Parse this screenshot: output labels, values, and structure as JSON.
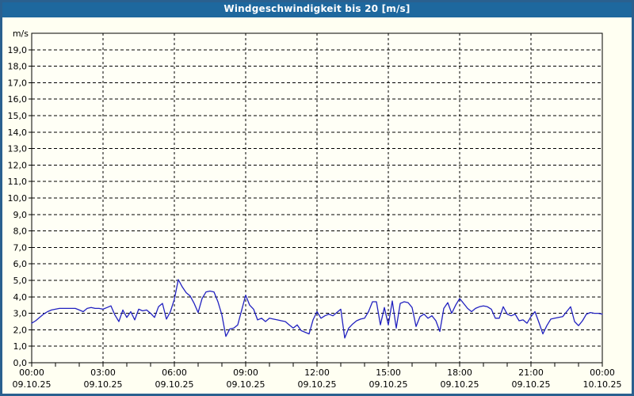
{
  "window": {
    "title": "Windgeschwindigkeit bis 20 [m/s]"
  },
  "colors": {
    "titlebar": "#1e689e",
    "page_border": "#2a608f",
    "background": "#fffff2",
    "plot_background": "#fffff6",
    "grid": "#000000",
    "axis": "#000000",
    "series_line": "#2121c0",
    "title_text": "#ffffff",
    "tick_text": "#000000"
  },
  "chart_data": {
    "type": "line",
    "title": "Windgeschwindigkeit bis 20 [m/s]",
    "ylabel": "m/s",
    "xlabel": "",
    "ylim": [
      0,
      20
    ],
    "y_tick_step": 1.0,
    "y_tick_labels": [
      "0,0",
      "1,0",
      "2,0",
      "3,0",
      "4,0",
      "5,0",
      "6,0",
      "7,0",
      "8,0",
      "9,0",
      "10,0",
      "11,0",
      "12,0",
      "13,0",
      "14,0",
      "15,0",
      "16,0",
      "17,0",
      "18,0",
      "19,0"
    ],
    "grid": "dashed",
    "legend_position": "none",
    "x_total_minutes": 1440,
    "x_minor_tick_minutes": 60,
    "x_major_tick_minutes": 180,
    "x_ticks": [
      {
        "time": "00:00",
        "date": "09.10.25"
      },
      {
        "time": "03:00",
        "date": "09.10.25"
      },
      {
        "time": "06:00",
        "date": "09.10.25"
      },
      {
        "time": "09:00",
        "date": "09.10.25"
      },
      {
        "time": "12:00",
        "date": "09.10.25"
      },
      {
        "time": "15:00",
        "date": "09.10.25"
      },
      {
        "time": "18:00",
        "date": "09.10.25"
      },
      {
        "time": "21:00",
        "date": "09.10.25"
      },
      {
        "time": "00:00",
        "date": "10.10.25"
      }
    ],
    "series": [
      {
        "name": "Windgeschwindigkeit",
        "unit": "m/s",
        "start_time": "09.10.25 00:00",
        "interval_minutes": 10,
        "values": [
          2.4,
          2.55,
          2.75,
          2.95,
          3.1,
          3.2,
          3.25,
          3.3,
          3.3,
          3.3,
          3.3,
          3.3,
          3.2,
          3.1,
          3.3,
          3.35,
          3.3,
          3.3,
          3.25,
          3.35,
          3.45,
          2.9,
          2.5,
          3.2,
          2.75,
          3.1,
          2.6,
          3.25,
          3.15,
          3.2,
          3.0,
          2.75,
          3.4,
          3.6,
          2.65,
          3.1,
          3.85,
          5.05,
          4.6,
          4.25,
          4.05,
          3.6,
          3.05,
          3.9,
          4.3,
          4.35,
          4.3,
          3.7,
          2.9,
          1.6,
          2.05,
          2.1,
          2.3,
          3.2,
          4.1,
          3.5,
          3.25,
          2.6,
          2.7,
          2.5,
          2.7,
          2.65,
          2.6,
          2.55,
          2.5,
          2.3,
          2.1,
          2.3,
          1.95,
          1.85,
          1.75,
          2.6,
          3.1,
          2.7,
          2.85,
          2.95,
          2.85,
          3.05,
          3.25,
          1.5,
          2.1,
          2.35,
          2.55,
          2.65,
          2.7,
          3.1,
          3.7,
          3.7,
          2.3,
          3.35,
          2.3,
          3.75,
          2.1,
          3.6,
          3.7,
          3.65,
          3.35,
          2.2,
          2.8,
          2.95,
          2.7,
          2.85,
          2.55,
          1.9,
          3.3,
          3.65,
          3.0,
          3.5,
          3.9,
          3.6,
          3.3,
          3.1,
          3.3,
          3.4,
          3.45,
          3.4,
          3.25,
          2.7,
          2.7,
          3.4,
          2.95,
          2.85,
          2.95,
          2.55,
          2.6,
          2.4,
          2.8,
          3.1,
          2.45,
          1.75,
          2.25,
          2.65,
          2.7,
          2.75,
          2.8,
          3.1,
          3.4,
          2.5,
          2.25,
          2.55,
          2.95,
          3.05,
          3.0,
          3.0,
          2.95
        ]
      }
    ]
  }
}
